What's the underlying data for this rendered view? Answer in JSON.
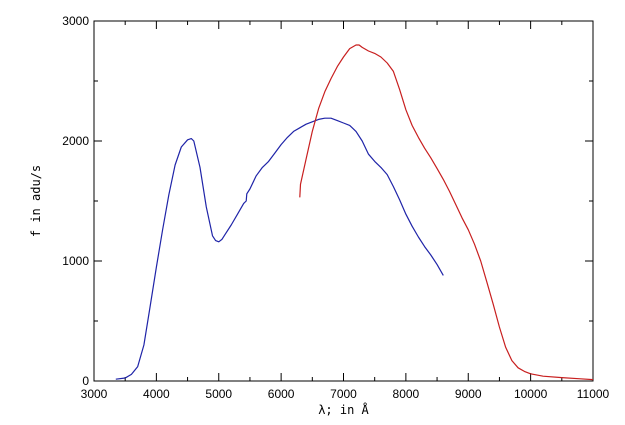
{
  "chart_data": {
    "type": "line",
    "title": "",
    "xlabel": "λ; in Å",
    "ylabel": "f in adu/s",
    "xlim": [
      3000,
      11000
    ],
    "ylim": [
      0,
      3000
    ],
    "x_ticks": [
      3000,
      4000,
      5000,
      6000,
      7000,
      8000,
      9000,
      10000,
      11000
    ],
    "y_ticks": [
      0,
      1000,
      2000,
      3000
    ],
    "grid": false,
    "legend": "none",
    "series": [
      {
        "color": "#1f24a8",
        "points": [
          [
            3350,
            15
          ],
          [
            3500,
            25
          ],
          [
            3600,
            55
          ],
          [
            3700,
            120
          ],
          [
            3800,
            300
          ],
          [
            3900,
            620
          ],
          [
            4000,
            950
          ],
          [
            4100,
            1260
          ],
          [
            4200,
            1550
          ],
          [
            4300,
            1800
          ],
          [
            4400,
            1950
          ],
          [
            4500,
            2010
          ],
          [
            4560,
            2020
          ],
          [
            4600,
            2000
          ],
          [
            4700,
            1780
          ],
          [
            4800,
            1450
          ],
          [
            4900,
            1210
          ],
          [
            4950,
            1170
          ],
          [
            5000,
            1160
          ],
          [
            5050,
            1180
          ],
          [
            5100,
            1220
          ],
          [
            5200,
            1300
          ],
          [
            5300,
            1390
          ],
          [
            5400,
            1480
          ],
          [
            5440,
            1500
          ],
          [
            5450,
            1560
          ],
          [
            5500,
            1600
          ],
          [
            5600,
            1710
          ],
          [
            5700,
            1780
          ],
          [
            5800,
            1830
          ],
          [
            5900,
            1900
          ],
          [
            6000,
            1970
          ],
          [
            6100,
            2030
          ],
          [
            6200,
            2080
          ],
          [
            6300,
            2110
          ],
          [
            6400,
            2140
          ],
          [
            6500,
            2160
          ],
          [
            6600,
            2180
          ],
          [
            6700,
            2190
          ],
          [
            6800,
            2190
          ],
          [
            6900,
            2170
          ],
          [
            7000,
            2150
          ],
          [
            7100,
            2130
          ],
          [
            7200,
            2080
          ],
          [
            7300,
            2000
          ],
          [
            7400,
            1890
          ],
          [
            7500,
            1830
          ],
          [
            7600,
            1780
          ],
          [
            7700,
            1720
          ],
          [
            7800,
            1620
          ],
          [
            7900,
            1510
          ],
          [
            8000,
            1390
          ],
          [
            8100,
            1290
          ],
          [
            8200,
            1200
          ],
          [
            8300,
            1120
          ],
          [
            8400,
            1050
          ],
          [
            8500,
            970
          ],
          [
            8600,
            880
          ]
        ]
      },
      {
        "color": "#c81f1f",
        "points": [
          [
            6300,
            1530
          ],
          [
            6310,
            1640
          ],
          [
            6400,
            1850
          ],
          [
            6500,
            2080
          ],
          [
            6600,
            2270
          ],
          [
            6700,
            2410
          ],
          [
            6800,
            2520
          ],
          [
            6900,
            2620
          ],
          [
            7000,
            2700
          ],
          [
            7100,
            2770
          ],
          [
            7200,
            2800
          ],
          [
            7250,
            2800
          ],
          [
            7300,
            2780
          ],
          [
            7400,
            2750
          ],
          [
            7500,
            2730
          ],
          [
            7600,
            2700
          ],
          [
            7700,
            2650
          ],
          [
            7800,
            2580
          ],
          [
            7900,
            2430
          ],
          [
            8000,
            2260
          ],
          [
            8100,
            2130
          ],
          [
            8200,
            2030
          ],
          [
            8300,
            1940
          ],
          [
            8400,
            1860
          ],
          [
            8500,
            1770
          ],
          [
            8600,
            1680
          ],
          [
            8700,
            1580
          ],
          [
            8800,
            1470
          ],
          [
            8900,
            1360
          ],
          [
            9000,
            1260
          ],
          [
            9100,
            1140
          ],
          [
            9200,
            1000
          ],
          [
            9300,
            820
          ],
          [
            9400,
            640
          ],
          [
            9500,
            450
          ],
          [
            9600,
            280
          ],
          [
            9700,
            170
          ],
          [
            9800,
            110
          ],
          [
            9900,
            80
          ],
          [
            10000,
            60
          ],
          [
            10200,
            40
          ],
          [
            10500,
            28
          ],
          [
            10800,
            18
          ],
          [
            11000,
            12
          ]
        ]
      }
    ]
  }
}
